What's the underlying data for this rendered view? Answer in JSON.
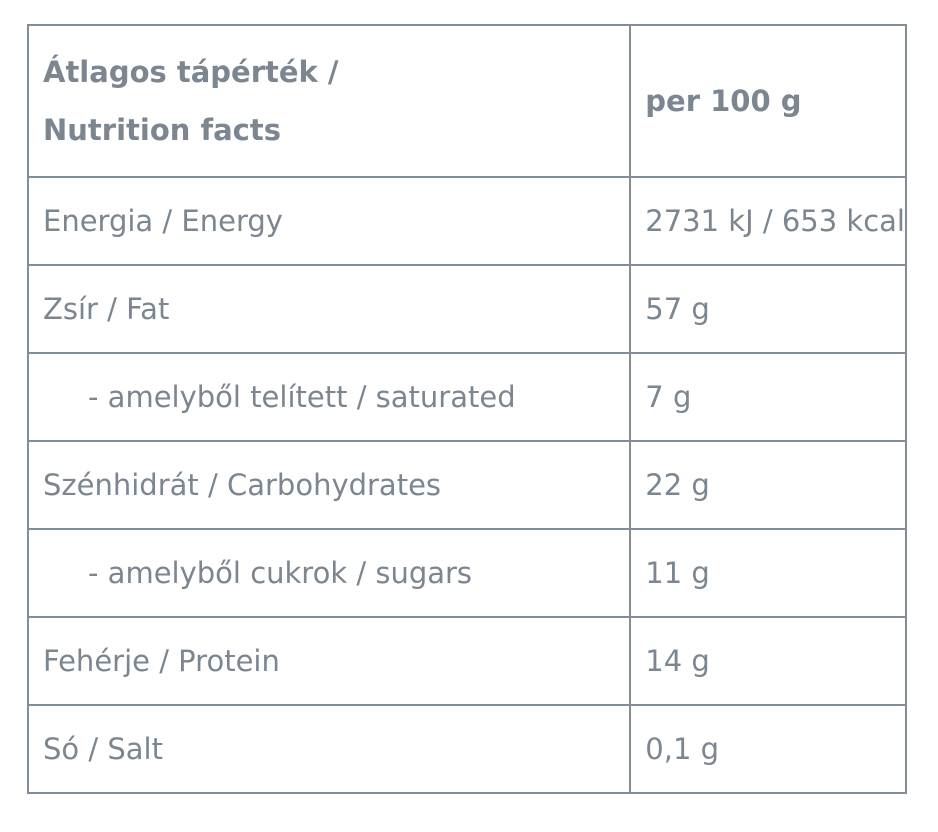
{
  "header": {
    "label_line1": "Átlagos tápérték /",
    "label_line2": "Nutrition facts",
    "value": "per 100 g"
  },
  "rows": [
    {
      "label": "Energia / Energy",
      "value": "2731 kJ / 653 kcal",
      "indent": false
    },
    {
      "label": "Zsír / Fat",
      "value": "57 g",
      "indent": false
    },
    {
      "label": "- amelyből telített / saturated",
      "value": "7 g",
      "indent": true
    },
    {
      "label": "Szénhidrát / Carbohydrates",
      "value": "22 g",
      "indent": false
    },
    {
      "label": "- amelyből cukrok / sugars",
      "value": "11 g",
      "indent": true
    },
    {
      "label": "Fehérje / Protein",
      "value": "14 g",
      "indent": false
    },
    {
      "label": "Só / Salt",
      "value": "0,1 g",
      "indent": false
    }
  ]
}
